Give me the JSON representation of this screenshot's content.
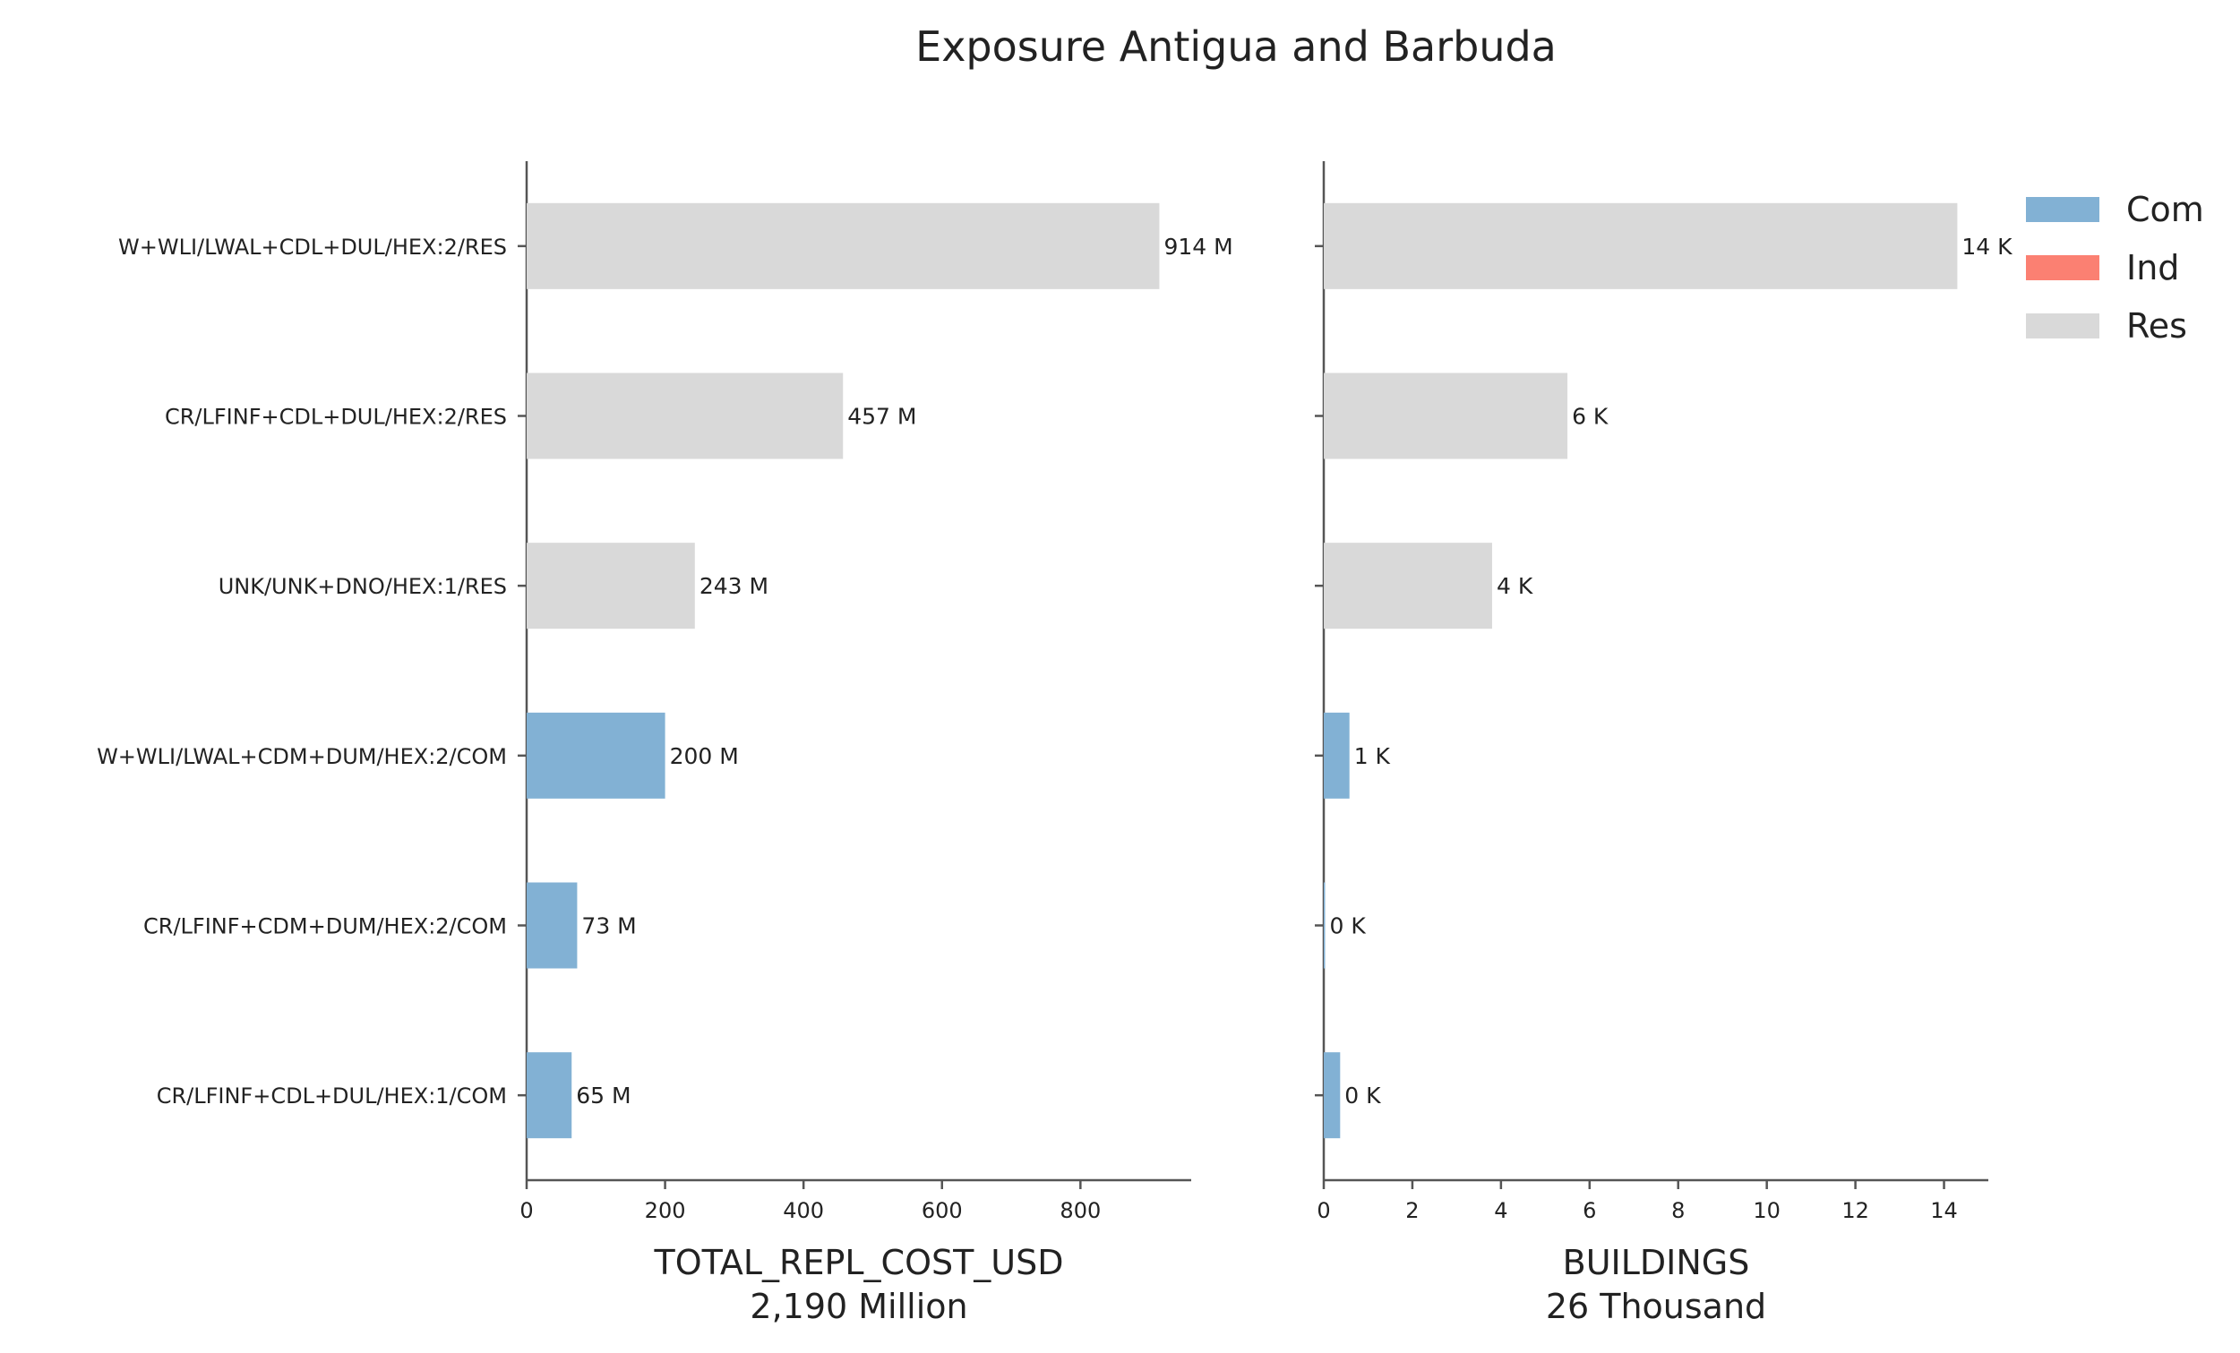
{
  "title": "Exposure Antigua and Barbuda",
  "colors": {
    "Com": "#82b1d4",
    "Ind": "#fb8072",
    "Res": "#d9d9d9"
  },
  "legend": {
    "placement": "top-right",
    "items": [
      "Com",
      "Ind",
      "Res"
    ]
  },
  "chart_data": [
    {
      "type": "bar",
      "orientation": "horizontal",
      "categories": [
        "W+WLI/LWAL+CDL+DUL/HEX:2/RES",
        "CR/LFINF+CDL+DUL/HEX:2/RES",
        "UNK/UNK+DNO/HEX:1/RES",
        "W+WLI/LWAL+CDM+DUM/HEX:2/COM",
        "CR/LFINF+CDM+DUM/HEX:2/COM",
        "CR/LFINF+CDL+DUL/HEX:1/COM"
      ],
      "occupancy": [
        "Res",
        "Res",
        "Res",
        "Com",
        "Com",
        "Com"
      ],
      "values": [
        914,
        457,
        243,
        200,
        73,
        65
      ],
      "data_labels": [
        "914 M",
        "457 M",
        "243 M",
        "200 M",
        "73 M",
        "65 M"
      ],
      "xlabel": "TOTAL_REPL_COST_USD",
      "xlabel_sub": "2,190 Million",
      "xlim": [
        0,
        960
      ],
      "xticks": [
        0,
        200,
        400,
        600,
        800
      ],
      "grid": false
    },
    {
      "type": "bar",
      "orientation": "horizontal",
      "categories": [
        "W+WLI/LWAL+CDL+DUL/HEX:2/RES",
        "CR/LFINF+CDL+DUL/HEX:2/RES",
        "UNK/UNK+DNO/HEX:1/RES",
        "W+WLI/LWAL+CDM+DUM/HEX:2/COM",
        "CR/LFINF+CDM+DUM/HEX:2/COM",
        "CR/LFINF+CDL+DUL/HEX:1/COM"
      ],
      "occupancy": [
        "Res",
        "Res",
        "Res",
        "Com",
        "Com",
        "Com"
      ],
      "values": [
        14.3,
        5.5,
        3.8,
        0.58,
        0.03,
        0.37
      ],
      "data_labels": [
        "14 K",
        "6 K",
        "4 K",
        "1 K",
        "0 K",
        "0 K"
      ],
      "xlabel": "BUILDINGS",
      "xlabel_sub": "26 Thousand",
      "xlim": [
        0,
        15
      ],
      "xticks": [
        0,
        2,
        4,
        6,
        8,
        10,
        12,
        14
      ],
      "grid": false
    }
  ]
}
